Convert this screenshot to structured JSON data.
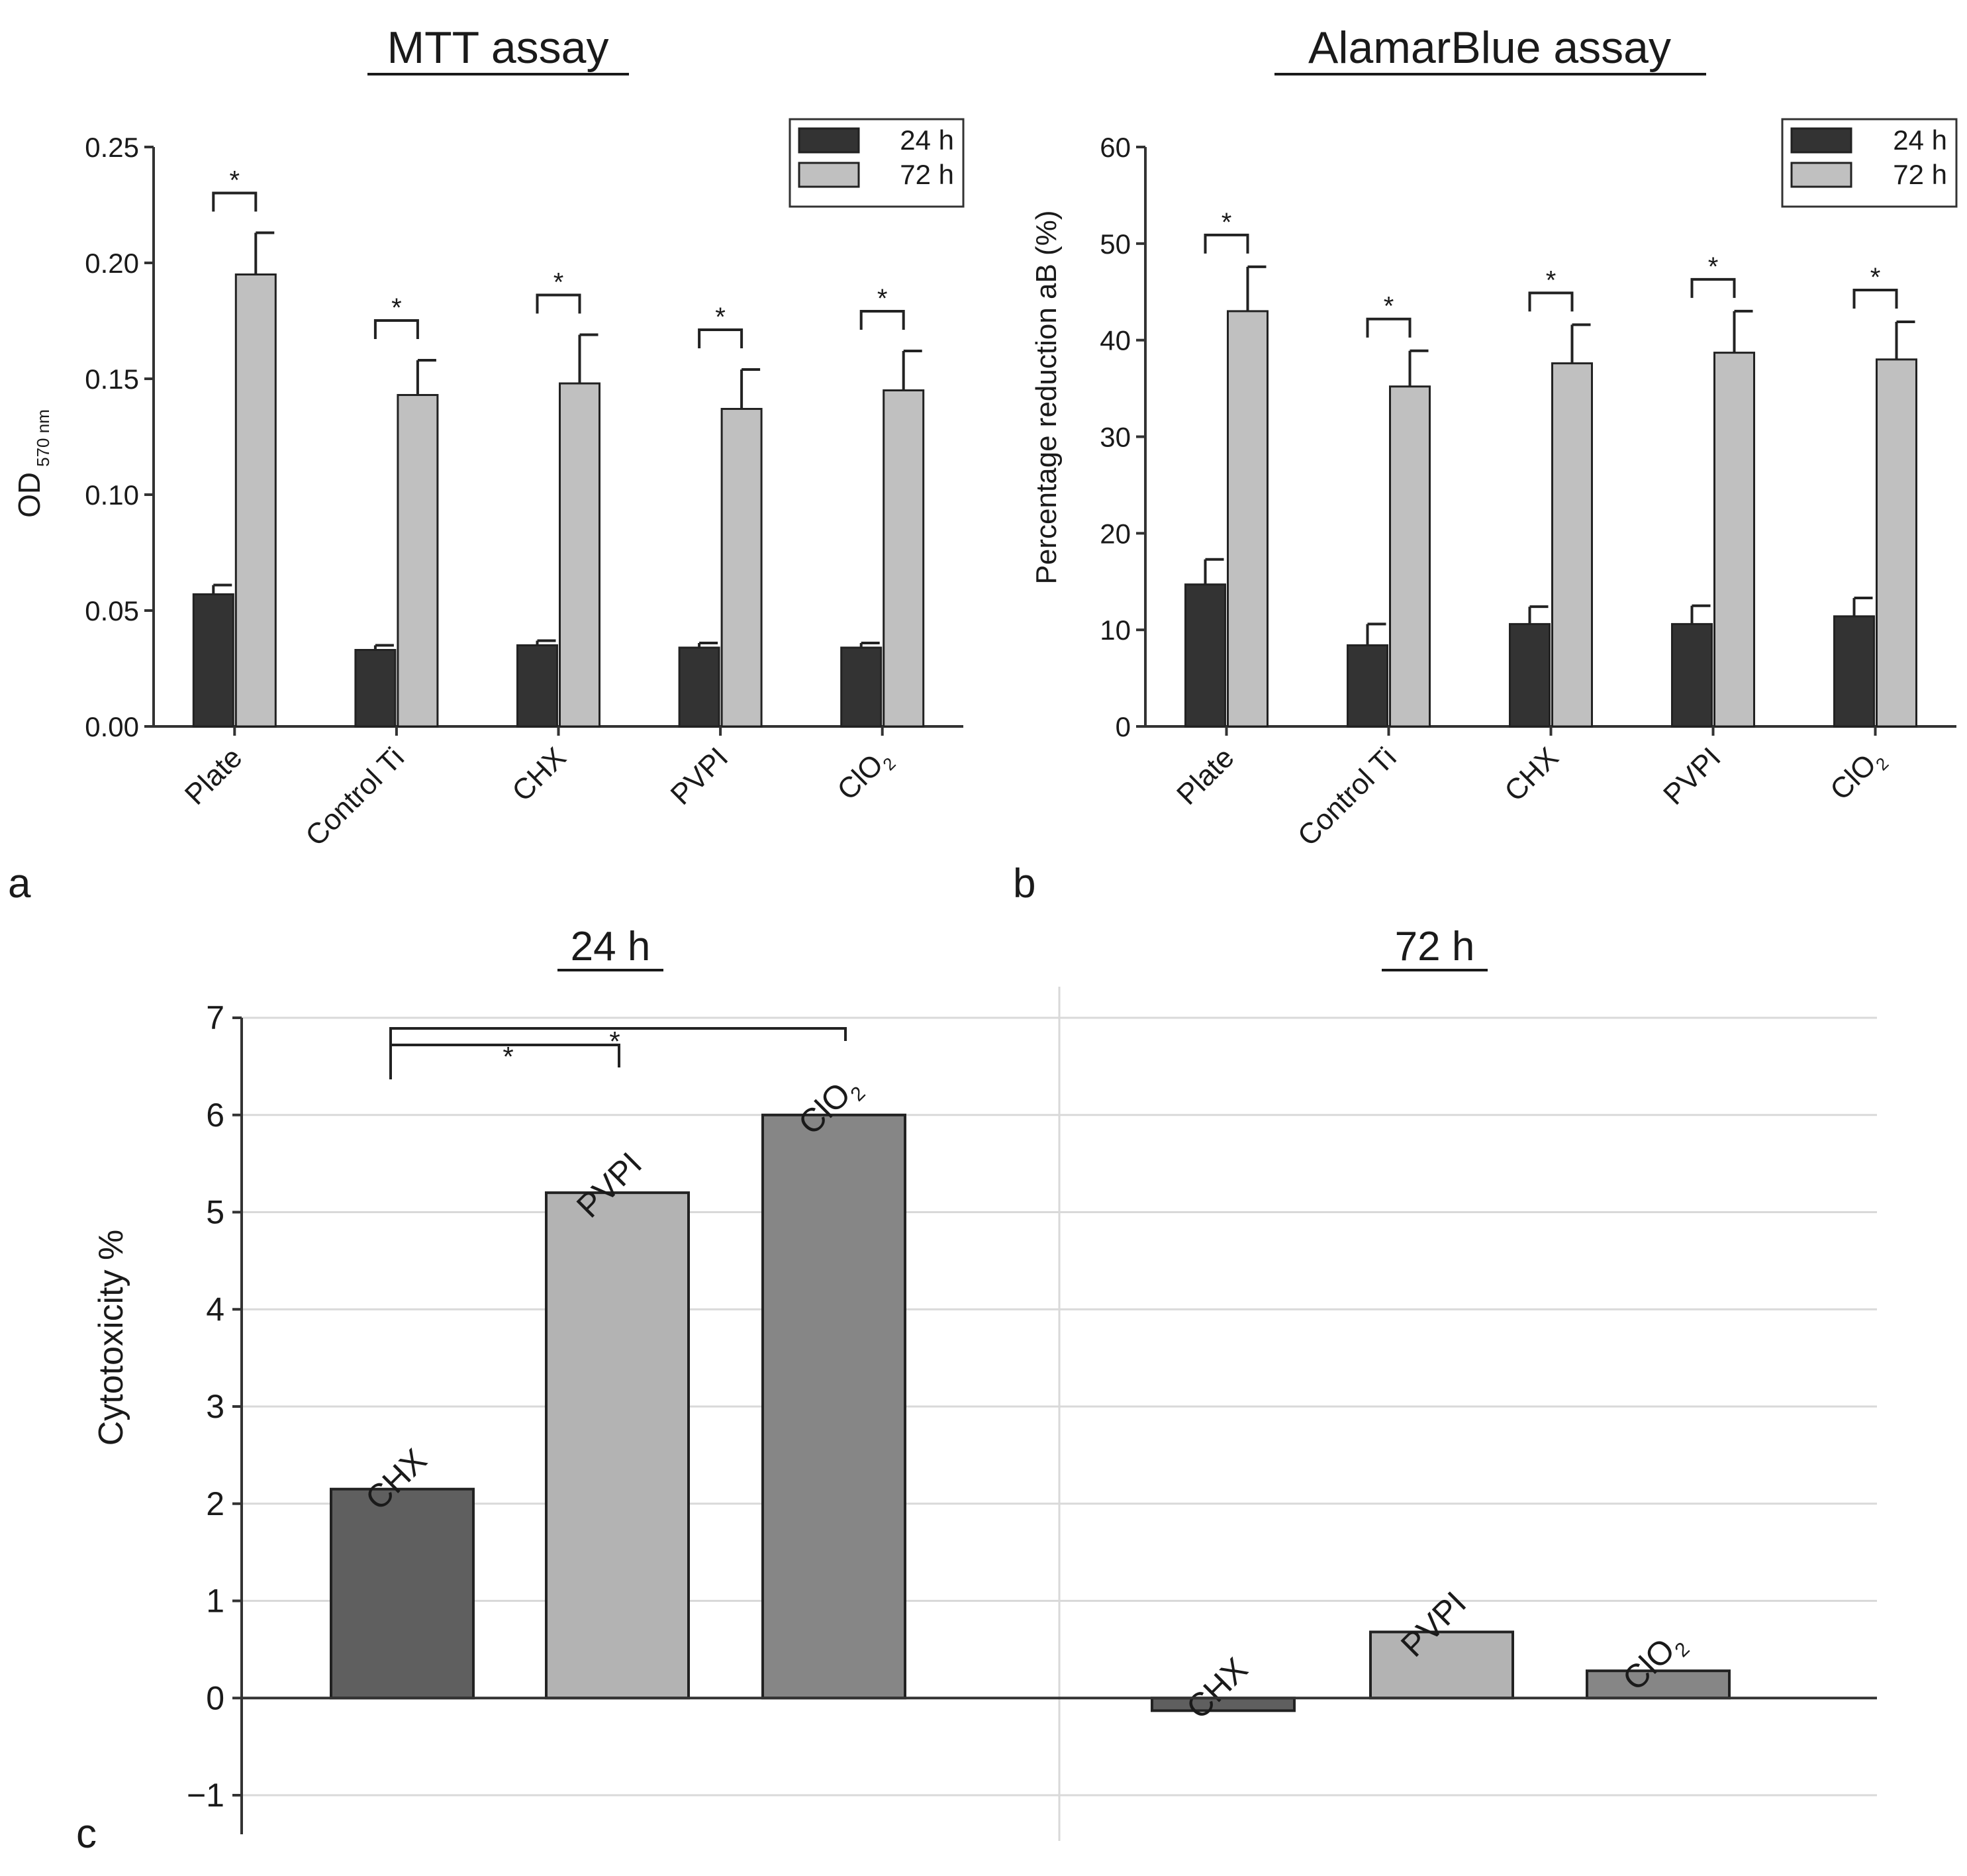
{
  "chart_data": [
    {
      "panel": "a",
      "type": "bar",
      "title": "MTT assay",
      "ylabel_main": "OD",
      "ylabel_sub": "570 nm",
      "xlabel": "",
      "categories": [
        "Plate",
        "Control Ti",
        "CHX",
        "PVPI",
        "ClO"
      ],
      "category_subscripts": [
        "",
        "",
        "",
        "",
        "2"
      ],
      "series": [
        {
          "name": "24 h",
          "values": [
            0.057,
            0.033,
            0.035,
            0.034,
            0.034
          ],
          "errors": [
            0.004,
            0.002,
            0.002,
            0.002,
            0.002
          ]
        },
        {
          "name": "72 h",
          "values": [
            0.195,
            0.143,
            0.148,
            0.137,
            0.145
          ],
          "errors": [
            0.018,
            0.015,
            0.021,
            0.017,
            0.017
          ]
        }
      ],
      "significance": [
        "*",
        "*",
        "*",
        "*",
        "*"
      ],
      "ylim": [
        0,
        0.25
      ],
      "yticks": [
        "0.00",
        "0.05",
        "0.10",
        "0.15",
        "0.20",
        "0.25"
      ],
      "ytick_values": [
        0,
        0.05,
        0.1,
        0.15,
        0.2,
        0.25
      ],
      "legend": [
        "24 h",
        "72 h"
      ],
      "legend_position": "top-right",
      "grid": false
    },
    {
      "panel": "b",
      "type": "bar",
      "title": "AlamarBlue assay",
      "ylabel": "Percentage reduction aB (%)",
      "xlabel": "",
      "categories": [
        "Plate",
        "Control Ti",
        "CHX",
        "PVPI",
        "ClO"
      ],
      "category_subscripts": [
        "",
        "",
        "",
        "",
        "2"
      ],
      "series": [
        {
          "name": "24 h",
          "values": [
            14.7,
            8.4,
            10.6,
            10.6,
            11.4
          ],
          "errors": [
            2.6,
            2.2,
            1.8,
            1.9,
            1.9
          ]
        },
        {
          "name": "72 h",
          "values": [
            43.0,
            35.2,
            37.6,
            38.7,
            38.0
          ],
          "errors": [
            4.6,
            3.7,
            4.0,
            4.3,
            3.9
          ]
        }
      ],
      "significance": [
        "*",
        "*",
        "*",
        "*",
        "*"
      ],
      "ylim": [
        0,
        60
      ],
      "yticks": [
        "0",
        "10",
        "20",
        "30",
        "40",
        "50",
        "60"
      ],
      "ytick_values": [
        0,
        10,
        20,
        30,
        40,
        50,
        60
      ],
      "legend": [
        "24 h",
        "72 h"
      ],
      "legend_position": "top-right",
      "grid": false
    },
    {
      "panel": "c",
      "type": "bar",
      "ylabel": "Cytotoxicity %",
      "xlabel": "",
      "groups": [
        {
          "title": "24 h",
          "categories": [
            "CHX",
            "PVPI",
            "ClO"
          ],
          "category_subscripts": [
            "",
            "",
            "2"
          ],
          "values": [
            2.15,
            5.2,
            6.0
          ]
        },
        {
          "title": "72 h",
          "categories": [
            "CHX",
            "PVPI",
            "ClO"
          ],
          "category_subscripts": [
            "",
            "",
            "2"
          ],
          "values": [
            -0.13,
            0.68,
            0.28
          ]
        }
      ],
      "bar_colors": [
        "#5f5f5f",
        "#b3b3b3",
        "#868686"
      ],
      "significance": [
        {
          "from": "CHX",
          "to": "PVPI",
          "group": "24 h",
          "label": "*"
        },
        {
          "from": "CHX",
          "to": "ClO2",
          "group": "24 h",
          "label": "*"
        }
      ],
      "ylim": [
        -1,
        7
      ],
      "yticks": [
        "−1",
        "0",
        "1",
        "2",
        "3",
        "4",
        "5",
        "6",
        "7"
      ],
      "ytick_values": [
        -1,
        0,
        1,
        2,
        3,
        4,
        5,
        6,
        7
      ],
      "grid": true
    }
  ],
  "panel_labels": {
    "a": "a",
    "b": "b",
    "c": "c"
  },
  "colors": {
    "series_24h": "#333333",
    "series_72h": "#c0c0c0",
    "axis": "#333333",
    "grid": "#d9d9d9"
  }
}
